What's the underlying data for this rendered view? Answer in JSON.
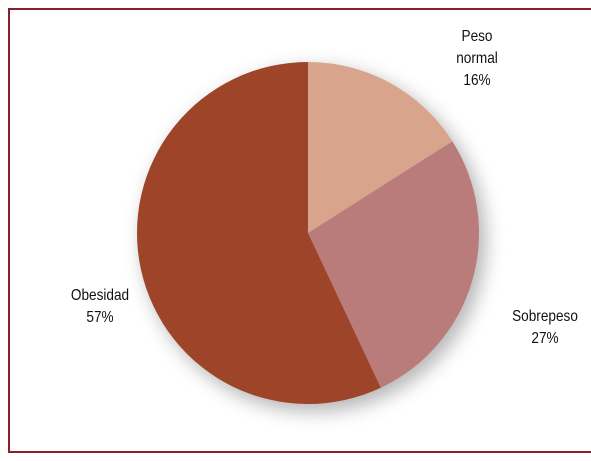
{
  "chart_data": {
    "type": "pie",
    "categories": [
      "Peso normal",
      "Sobrepeso",
      "Obesidad"
    ],
    "values": [
      16,
      27,
      57
    ],
    "value_labels": [
      "16%",
      "27%",
      "57%"
    ],
    "colors": [
      "#d8a58c",
      "#b97c7b",
      "#9d4429"
    ]
  }
}
